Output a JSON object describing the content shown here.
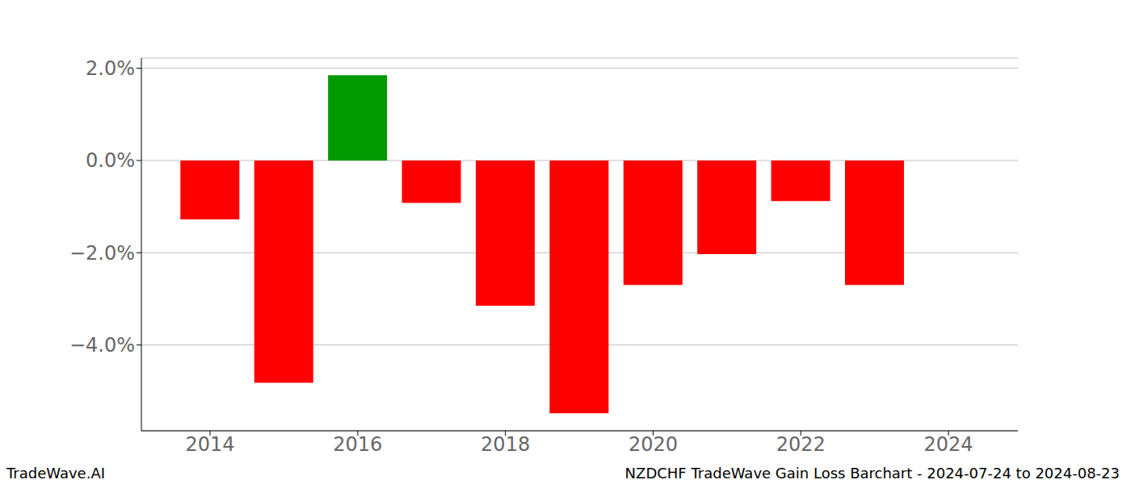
{
  "chart_data": {
    "type": "bar",
    "title": "NZDCHF TradeWave Gain Loss Barchart - 2024-07-24 to 2024-08-23",
    "annotations": [
      "TradeWave.AI"
    ],
    "x": [
      2014,
      2015,
      2016,
      2017,
      2018,
      2019,
      2020,
      2021,
      2022,
      2023
    ],
    "values": [
      -1.28,
      -4.82,
      1.85,
      -0.92,
      -3.15,
      -5.48,
      -2.7,
      -2.03,
      -0.88,
      -2.7
    ],
    "colors": [
      "#ff0000",
      "#ff0000",
      "#009900",
      "#ff0000",
      "#ff0000",
      "#ff0000",
      "#ff0000",
      "#ff0000",
      "#ff0000",
      "#ff0000"
    ],
    "xlim": [
      2013.07,
      2024.94
    ],
    "xticks": [
      2014,
      2016,
      2018,
      2020,
      2022,
      2024
    ],
    "ylim": [
      -5.86,
      2.22
    ],
    "yticks": [
      {
        "value": -4,
        "label": "−4.0%"
      },
      {
        "value": -2,
        "label": "−2.0%"
      },
      {
        "value": 0,
        "label": "0.0%"
      },
      {
        "value": 2,
        "label": "2.0%"
      }
    ],
    "grid": true
  }
}
